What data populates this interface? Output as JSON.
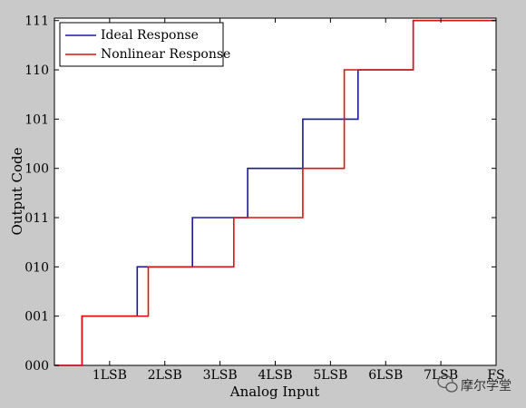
{
  "chart_data": {
    "type": "line",
    "xlabel": "Analog Input",
    "ylabel": "Output Code",
    "x_tick_labels": [
      "1LSB",
      "2LSB",
      "3LSB",
      "4LSB",
      "5LSB",
      "6LSB",
      "7LSB",
      "FS"
    ],
    "y_tick_labels": [
      "000",
      "001",
      "010",
      "011",
      "100",
      "101",
      "110",
      "111"
    ],
    "xlim": [
      0,
      8
    ],
    "ylim": [
      0,
      7.05
    ],
    "x_tick_values": [
      1,
      2,
      3,
      4,
      5,
      6,
      7,
      8
    ],
    "y_tick_values": [
      0,
      1,
      2,
      3,
      4,
      5,
      6,
      7
    ],
    "grid": false,
    "legend_position": "top-left",
    "series": [
      {
        "name": "Ideal Response",
        "color": "#1a1a99",
        "points": [
          [
            0,
            0
          ],
          [
            0.5,
            0
          ],
          [
            0.5,
            1
          ],
          [
            1.5,
            1
          ],
          [
            1.5,
            2
          ],
          [
            2.5,
            2
          ],
          [
            2.5,
            3
          ],
          [
            3.5,
            3
          ],
          [
            3.5,
            4
          ],
          [
            4.5,
            4
          ],
          [
            4.5,
            5
          ],
          [
            5.5,
            5
          ],
          [
            5.5,
            6
          ],
          [
            6.5,
            6
          ],
          [
            6.5,
            7
          ],
          [
            8,
            7
          ]
        ]
      },
      {
        "name": "Nonlinear Response",
        "color": "#dd1111",
        "points": [
          [
            0,
            0
          ],
          [
            0.5,
            0
          ],
          [
            0.5,
            1
          ],
          [
            1.7,
            1
          ],
          [
            1.7,
            2
          ],
          [
            3.25,
            2
          ],
          [
            3.25,
            3
          ],
          [
            4.5,
            3
          ],
          [
            4.5,
            4
          ],
          [
            5.25,
            4
          ],
          [
            5.25,
            6
          ],
          [
            6.5,
            6
          ],
          [
            6.5,
            7
          ],
          [
            8,
            7
          ]
        ]
      }
    ]
  },
  "watermark": {
    "text": "摩尔学堂",
    "icon": "wechat-icon"
  }
}
